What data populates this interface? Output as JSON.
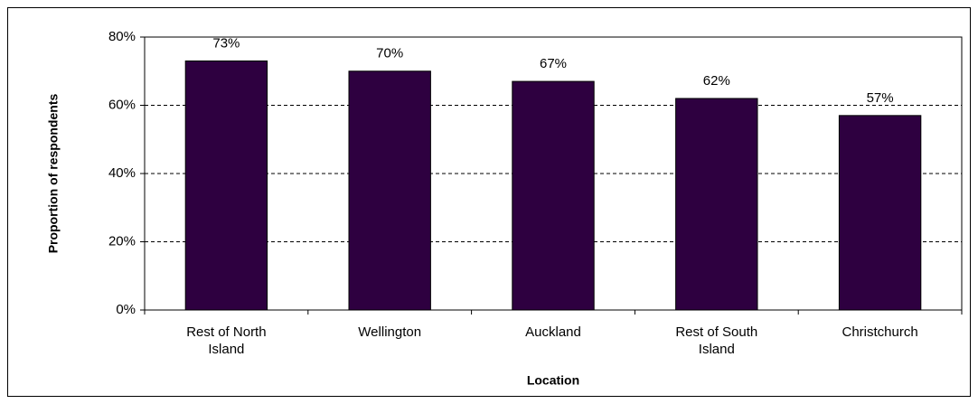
{
  "chart_data": {
    "type": "bar",
    "y_axis_label": "Proportion of respondents",
    "x_axis_label": "Location",
    "categories": [
      "Rest of North Island",
      "Wellington",
      "Auckland",
      "Rest of South Island",
      "Christchurch"
    ],
    "values": [
      73,
      70,
      67,
      62,
      57
    ],
    "value_labels": [
      "73%",
      "70%",
      "67%",
      "62%",
      "57%"
    ],
    "color": "#2e0040",
    "ylim": [
      0,
      80
    ],
    "yticks": [
      {
        "value": 0,
        "label": "0%"
      },
      {
        "value": 20,
        "label": "20%"
      },
      {
        "value": 40,
        "label": "40%"
      },
      {
        "value": 60,
        "label": "60%"
      },
      {
        "value": 80,
        "label": "80%"
      }
    ],
    "grid": true
  }
}
